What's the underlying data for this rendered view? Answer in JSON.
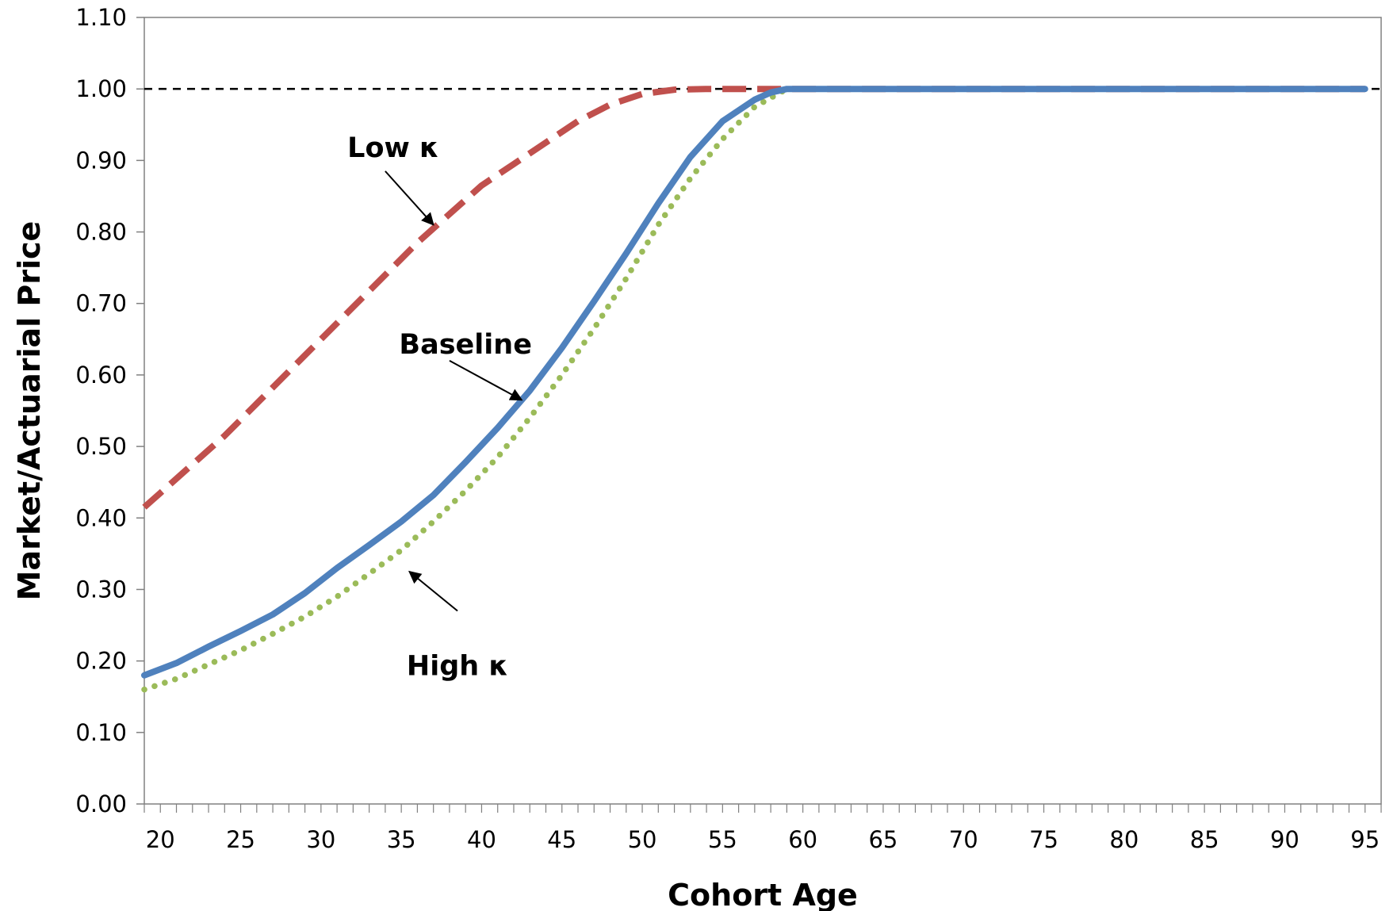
{
  "chart_data": {
    "type": "line",
    "title": "",
    "xlabel": "Cohort Age",
    "ylabel": "Market/Actuarial Price",
    "xlim": [
      19,
      96
    ],
    "ylim": [
      0.0,
      1.1
    ],
    "x_ticks": [
      20,
      25,
      30,
      35,
      40,
      45,
      50,
      55,
      60,
      65,
      70,
      75,
      80,
      85,
      90,
      95
    ],
    "y_ticks": [
      "0.00",
      "0.10",
      "0.20",
      "0.30",
      "0.40",
      "0.50",
      "0.60",
      "0.70",
      "0.80",
      "0.90",
      "1.00",
      "1.10"
    ],
    "grid": false,
    "legend": "none",
    "reference_line": {
      "y": 1.0,
      "style": "dashed",
      "color": "#000000"
    },
    "series": [
      {
        "key": "low",
        "color": "#c0504d",
        "style": "dashed",
        "x": [
          19,
          20,
          22,
          24,
          26,
          28,
          30,
          32,
          34,
          36,
          38,
          40,
          42,
          44,
          46,
          48,
          50,
          52,
          54,
          56,
          58,
          60,
          65,
          70,
          75,
          80,
          85,
          90,
          95
        ],
        "y": [
          0.415,
          0.435,
          0.475,
          0.515,
          0.56,
          0.605,
          0.65,
          0.695,
          0.74,
          0.785,
          0.825,
          0.865,
          0.895,
          0.925,
          0.955,
          0.978,
          0.993,
          0.999,
          1.0,
          1.0,
          1.0,
          1.0,
          1.0,
          1.0,
          1.0,
          1.0,
          1.0,
          1.0,
          1.0
        ]
      },
      {
        "key": "baseline",
        "color": "#4f81bd",
        "style": "solid",
        "x": [
          19,
          21,
          23,
          25,
          27,
          29,
          31,
          33,
          35,
          37,
          39,
          41,
          43,
          45,
          47,
          49,
          51,
          53,
          55,
          57,
          58,
          59,
          60,
          65,
          70,
          75,
          80,
          85,
          90,
          95
        ],
        "y": [
          0.18,
          0.197,
          0.22,
          0.242,
          0.265,
          0.295,
          0.33,
          0.362,
          0.395,
          0.432,
          0.478,
          0.526,
          0.578,
          0.638,
          0.703,
          0.77,
          0.84,
          0.905,
          0.955,
          0.985,
          0.995,
          1.0,
          1.0,
          1.0,
          1.0,
          1.0,
          1.0,
          1.0,
          1.0,
          1.0
        ]
      },
      {
        "key": "high",
        "color": "#9bbb59",
        "style": "dotted",
        "x": [
          19,
          21,
          23,
          25,
          27,
          29,
          31,
          33,
          35,
          37,
          39,
          41,
          43,
          45,
          47,
          49,
          51,
          53,
          55,
          57,
          59,
          60,
          65,
          70,
          75,
          80,
          85,
          90,
          95
        ],
        "y": [
          0.16,
          0.175,
          0.195,
          0.215,
          0.238,
          0.262,
          0.29,
          0.322,
          0.355,
          0.395,
          0.438,
          0.485,
          0.54,
          0.6,
          0.665,
          0.735,
          0.81,
          0.875,
          0.93,
          0.975,
          1.0,
          1.0,
          1.0,
          1.0,
          1.0,
          1.0,
          1.0,
          1.0,
          1.0
        ]
      }
    ],
    "annotations": [
      {
        "series": "low",
        "text": "Low κ",
        "text_x": 34.5,
        "text_y": 0.905,
        "arrow_from": [
          34.0,
          0.885
        ],
        "arrow_to": [
          37.0,
          0.81
        ]
      },
      {
        "series": "baseline",
        "text": "Baseline",
        "text_x": 39.0,
        "text_y": 0.63,
        "arrow_from": [
          38.0,
          0.62
        ],
        "arrow_to": [
          42.5,
          0.565
        ]
      },
      {
        "series": "high",
        "text": "High κ",
        "text_x": 38.5,
        "text_y": 0.18,
        "arrow_from": [
          38.5,
          0.27
        ],
        "arrow_to": [
          35.5,
          0.325
        ]
      }
    ]
  }
}
